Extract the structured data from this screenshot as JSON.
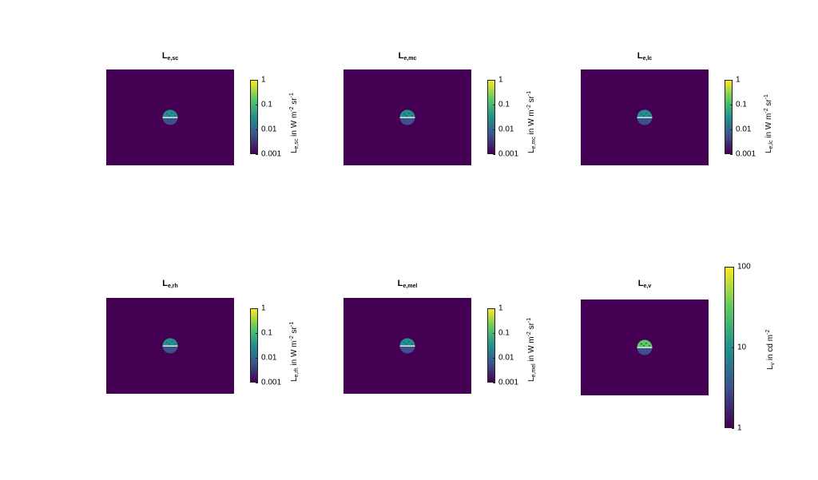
{
  "chart_data": [
    {
      "type": "heatmap",
      "title": "L_e,sc",
      "title_main": "L",
      "title_sub": "e,sc",
      "colorbar": {
        "scale": "log",
        "range": [
          0.001,
          1
        ],
        "ticks": [
          "0.001",
          "0.01",
          "0.1",
          "1"
        ],
        "label_main": "L",
        "label_sub": "e,sc",
        "label_unit": " in W m",
        "label_exp1": "-2",
        "label_sr": " sr",
        "label_exp2": "-1"
      },
      "colormap": "viridis"
    },
    {
      "type": "heatmap",
      "title": "L_e,mc",
      "title_main": "L",
      "title_sub": "e,mc",
      "colorbar": {
        "scale": "log",
        "range": [
          0.001,
          1
        ],
        "ticks": [
          "0.001",
          "0.01",
          "0.1",
          "1"
        ],
        "label_main": "L",
        "label_sub": "e,mc",
        "label_unit": " in W m",
        "label_exp1": "-2",
        "label_sr": " sr",
        "label_exp2": "-1"
      },
      "colormap": "viridis"
    },
    {
      "type": "heatmap",
      "title": "L_e,lc",
      "title_main": "L",
      "title_sub": "e,lc",
      "colorbar": {
        "scale": "log",
        "range": [
          0.001,
          1
        ],
        "ticks": [
          "0.001",
          "0.01",
          "0.1",
          "1"
        ],
        "label_main": "L",
        "label_sub": "e,lc",
        "label_unit": " in W m",
        "label_exp1": "-2",
        "label_sr": " sr",
        "label_exp2": "-1"
      },
      "colormap": "viridis"
    },
    {
      "type": "heatmap",
      "title": "L_e,rh",
      "title_main": "L",
      "title_sub": "e,rh",
      "colorbar": {
        "scale": "log",
        "range": [
          0.001,
          1
        ],
        "ticks": [
          "0.001",
          "0.01",
          "0.1",
          "1"
        ],
        "label_main": "L",
        "label_sub": "e,rh",
        "label_unit": " in W m",
        "label_exp1": "-2",
        "label_sr": " sr",
        "label_exp2": "-1"
      },
      "colormap": "viridis"
    },
    {
      "type": "heatmap",
      "title": "L_e,mel",
      "title_main": "L",
      "title_sub": "e,mel",
      "colorbar": {
        "scale": "log",
        "range": [
          0.001,
          1
        ],
        "ticks": [
          "0.001",
          "0.01",
          "0.1",
          "1"
        ],
        "label_main": "L",
        "label_sub": "e,mel",
        "label_unit": " in W m",
        "label_exp1": "-2",
        "label_sr": " sr",
        "label_exp2": "-1"
      },
      "colormap": "viridis"
    },
    {
      "type": "heatmap",
      "title": "L_e,v",
      "title_main": "L",
      "title_sub": "e,v",
      "colorbar": {
        "scale": "log",
        "range": [
          1,
          100
        ],
        "ticks": [
          "1",
          "10",
          "100"
        ],
        "label_main": "L",
        "label_sub": "v",
        "label_unit": " in cd m",
        "label_exp1": "-2",
        "label_sr": "",
        "label_exp2": ""
      },
      "colormap": "viridis"
    }
  ],
  "colors": {
    "background": "#440154",
    "viridis": [
      "#440154",
      "#3b528b",
      "#21918c",
      "#5ec962",
      "#fde725"
    ]
  }
}
